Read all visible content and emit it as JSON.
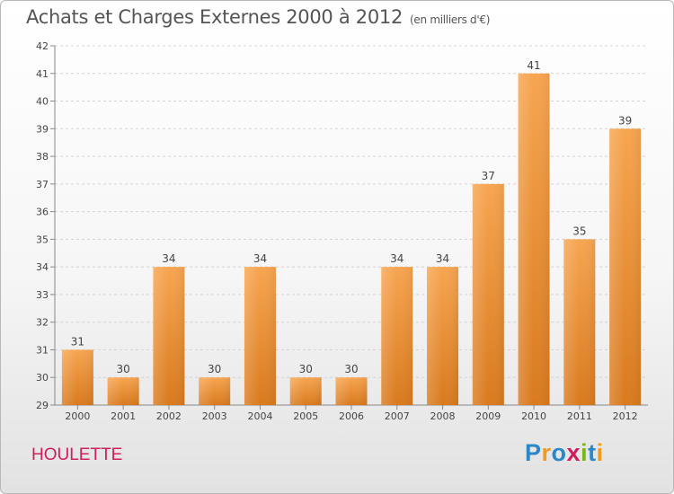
{
  "title": "Achats et Charges Externes 2000 à 2012",
  "unit": "(en milliers d'€)",
  "commune": "HOULETTE",
  "logo": {
    "text": "Proxiti",
    "colors": [
      "#2a87c8",
      "#f19a1e",
      "#2a87c8",
      "#d21c5b",
      "#7ab51d",
      "#2a87c8",
      "#f19a1e"
    ]
  },
  "chart_data": {
    "type": "bar",
    "title": "Achats et Charges Externes 2000 à 2012",
    "subtitle": "(en milliers d'€)",
    "xlabel": "",
    "ylabel": "",
    "categories": [
      "2000",
      "2001",
      "2002",
      "2003",
      "2004",
      "2005",
      "2006",
      "2007",
      "2008",
      "2009",
      "2010",
      "2011",
      "2012"
    ],
    "values": [
      31,
      30,
      34,
      30,
      34,
      30,
      30,
      34,
      34,
      37,
      41,
      35,
      39
    ],
    "ylim": [
      29,
      42
    ],
    "yticks": [
      29,
      30,
      31,
      32,
      33,
      34,
      35,
      36,
      37,
      38,
      39,
      40,
      41,
      42
    ],
    "grid": "horizontal",
    "bar_color_top": "#f7a550",
    "bar_color_bottom": "#d97a1e"
  }
}
